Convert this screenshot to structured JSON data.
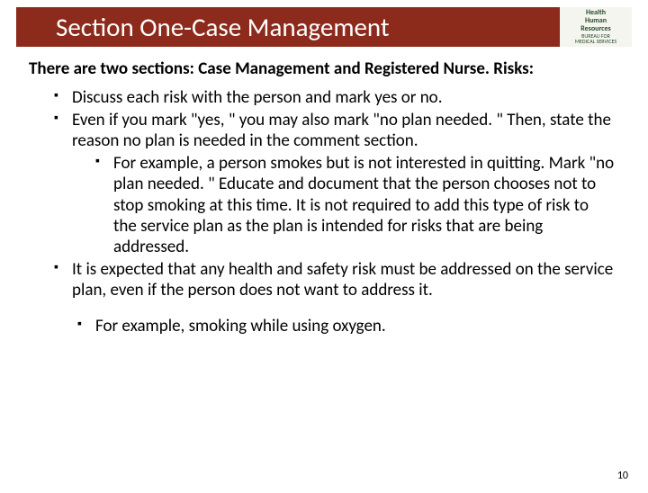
{
  "header": {
    "title": "Section One-Case Management",
    "title_bg": "#8c2a1c",
    "title_color": "#ffffff",
    "logo_lines": [
      "Health",
      "Human",
      "Resources",
      "BUREAU FOR",
      "MEDICAL SERVICES"
    ]
  },
  "intro": "There are two sections: Case Management and Registered Nurse. Risks:",
  "bullets": [
    {
      "text": "Discuss each risk with the person and mark yes or no."
    },
    {
      "text": "Even if you mark \"yes, \" you may also mark \"no plan needed. \"  Then, state the reason no plan is needed in the comment section.",
      "sub": [
        "For example, a person smokes but is not interested in quitting. Mark \"no plan needed. \" Educate and document that the person chooses not to stop smoking at this time.  It is not required to add this type of risk to the service plan as the plan is intended for risks that are being addressed."
      ]
    },
    {
      "text": "It is expected that any health and safety risk must be addressed on the service plan, even if the person does not want to address it."
    }
  ],
  "example": "For example, smoking while using oxygen.",
  "page_number": "10",
  "colors": {
    "background": "#ffffff",
    "text": "#000000"
  },
  "fontsize": {
    "title": 29,
    "intro": 19,
    "body": 19,
    "pagenum": 12
  }
}
